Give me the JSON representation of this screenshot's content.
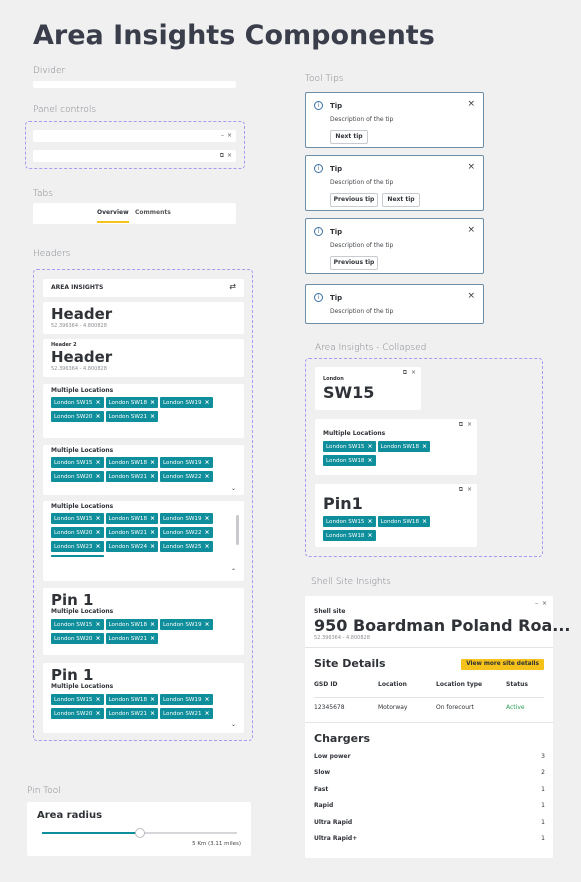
{
  "page_title": "Area Insights Components",
  "sections": {
    "divider": "Divider",
    "panel_controls": "Panel controls",
    "tabs": "Tabs",
    "headers": "Headers",
    "tool_tips": "Tool Tips",
    "collapsed": "Area Insights - Collapsed",
    "shell": "Shell Site Insights",
    "pin_tool": "Pin Tool"
  },
  "tabs": {
    "overview": "Overview",
    "comments": "Comments"
  },
  "headers": {
    "area_insights": "AREA INSIGHTS",
    "header": "Header",
    "coords": "52.396364 - 4.800828",
    "header2_label": "Header 2",
    "multi": "Multiple Locations",
    "pin": "Pin 1",
    "chips_a": [
      "London SW15",
      "London SW18",
      "London SW19"
    ],
    "chips_b": [
      "London SW20",
      "London SW21"
    ],
    "chips_c": [
      "London SW20",
      "London SW21",
      "London SW22"
    ],
    "chips_d": [
      "London SW23",
      "London SW24",
      "London SW25"
    ],
    "chips_e": [
      "London SW20",
      "London SW21",
      "London SW21"
    ]
  },
  "tooltips": {
    "title": "Tip",
    "desc": "Description of the tip",
    "next": "Next tip",
    "prev": "Previous tip"
  },
  "collapsed": {
    "london": "London",
    "sw15": "SW15",
    "multi": "Multiple Locations",
    "pin": "Pin1",
    "chips1": [
      "London SW15",
      "London SW18"
    ],
    "chips2": [
      "London SW18"
    ]
  },
  "shell": {
    "label": "Shell site",
    "title": "950 Boardman Poland Roa...",
    "coords": "52.396364 - 4.800828",
    "site_details": "Site Details",
    "view_more": "View more site details",
    "cols": [
      "GSD ID",
      "Location",
      "Location type",
      "Status"
    ],
    "row": [
      "12345678",
      "Motorway",
      "On forecourt",
      "Active"
    ],
    "chargers": "Chargers",
    "charger_rows": [
      {
        "name": "Low power",
        "count": "3"
      },
      {
        "name": "Slow",
        "count": "2"
      },
      {
        "name": "Fast",
        "count": "1"
      },
      {
        "name": "Rapid",
        "count": "1"
      },
      {
        "name": "Ultra Rapid",
        "count": "1"
      },
      {
        "name": "Ultra Rapid+",
        "count": "1"
      }
    ],
    "status_color": "#2e9e5a",
    "accent": "#f4c21a"
  },
  "pin_tool": {
    "title": "Area radius",
    "value_label": "5 Km (3.11 miles)",
    "slider_fraction": 0.5
  }
}
